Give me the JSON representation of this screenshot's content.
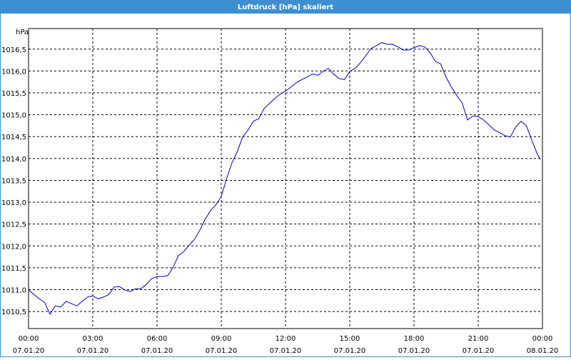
{
  "chart_data": {
    "type": "line",
    "title": "Luftdruck [hPa] skaliert",
    "y_label": "hPa",
    "x": [
      0,
      0.25,
      0.5,
      0.75,
      1,
      1.25,
      1.5,
      1.75,
      2,
      2.25,
      2.5,
      2.75,
      3,
      3.25,
      3.5,
      3.75,
      4,
      4.25,
      4.5,
      4.75,
      5,
      5.25,
      5.5,
      5.75,
      6,
      6.25,
      6.5,
      6.75,
      7,
      7.25,
      7.5,
      7.75,
      8,
      8.25,
      8.5,
      8.75,
      9,
      9.25,
      9.5,
      9.75,
      10,
      10.25,
      10.5,
      10.75,
      11,
      11.25,
      11.5,
      11.75,
      12,
      12.25,
      12.5,
      12.75,
      13,
      13.25,
      13.5,
      13.75,
      14,
      14.25,
      14.5,
      14.75,
      15,
      15.25,
      15.5,
      15.75,
      16,
      16.25,
      16.5,
      16.75,
      17,
      17.25,
      17.5,
      17.75,
      18,
      18.25,
      18.5,
      18.75,
      19,
      19.25,
      19.5,
      19.75,
      20,
      20.25,
      20.5,
      20.75,
      21,
      21.25,
      21.5,
      21.75,
      22,
      22.25,
      22.5,
      22.75,
      23,
      23.25,
      23.5,
      23.75,
      23.9
    ],
    "series": [
      {
        "name": "Luftdruck",
        "color": "#0000c0",
        "values": [
          1010.99,
          1010.89,
          1010.79,
          1010.71,
          1010.44,
          1010.63,
          1010.6,
          1010.73,
          1010.68,
          1010.63,
          1010.73,
          1010.83,
          1010.86,
          1010.79,
          1010.83,
          1010.89,
          1011.06,
          1011.07,
          1010.99,
          1010.96,
          1011.02,
          1011.02,
          1011.12,
          1011.25,
          1011.3,
          1011.3,
          1011.32,
          1011.51,
          1011.78,
          1011.87,
          1012.02,
          1012.15,
          1012.36,
          1012.61,
          1012.81,
          1012.94,
          1013.13,
          1013.54,
          1013.9,
          1014.16,
          1014.49,
          1014.65,
          1014.85,
          1014.91,
          1015.14,
          1015.26,
          1015.37,
          1015.47,
          1015.54,
          1015.63,
          1015.73,
          1015.8,
          1015.86,
          1015.93,
          1015.9,
          1015.99,
          1016.06,
          1015.93,
          1015.83,
          1015.8,
          1015.99,
          1016.06,
          1016.19,
          1016.35,
          1016.52,
          1016.58,
          1016.65,
          1016.61,
          1016.61,
          1016.55,
          1016.48,
          1016.48,
          1016.53,
          1016.58,
          1016.55,
          1016.42,
          1016.22,
          1016.16,
          1015.86,
          1015.63,
          1015.44,
          1015.27,
          1014.88,
          1014.97,
          1014.96,
          1014.88,
          1014.77,
          1014.65,
          1014.59,
          1014.52,
          1014.49,
          1014.72,
          1014.85,
          1014.75,
          1014.42,
          1014.11,
          1013.98
        ]
      }
    ],
    "xlim": [
      0,
      24
    ],
    "xticks": [
      {
        "value": 0,
        "label": "00:00",
        "sublabel": "07.01.20"
      },
      {
        "value": 3,
        "label": "03:00",
        "sublabel": "07.01.20"
      },
      {
        "value": 6,
        "label": "06:00",
        "sublabel": "07.01.20"
      },
      {
        "value": 9,
        "label": "09:00",
        "sublabel": "07.01.20"
      },
      {
        "value": 12,
        "label": "12:00",
        "sublabel": "07.01.20"
      },
      {
        "value": 15,
        "label": "15:00",
        "sublabel": "07.01.20"
      },
      {
        "value": 18,
        "label": "18:00",
        "sublabel": "07.01.20"
      },
      {
        "value": 21,
        "label": "21:00",
        "sublabel": "07.01.20"
      },
      {
        "value": 24,
        "label": "00:00",
        "sublabel": "08.01.20"
      }
    ],
    "ylim": [
      1010.11,
      1016.97
    ],
    "yticks": [
      {
        "value": 1010.5,
        "label": "1010,5"
      },
      {
        "value": 1011,
        "label": "1011,0"
      },
      {
        "value": 1011.5,
        "label": "1011,5"
      },
      {
        "value": 1012,
        "label": "1012,0"
      },
      {
        "value": 1012.5,
        "label": "1012,5"
      },
      {
        "value": 1013,
        "label": "1013,0"
      },
      {
        "value": 1013.5,
        "label": "1013,5"
      },
      {
        "value": 1014,
        "label": "1014,0"
      },
      {
        "value": 1014.5,
        "label": "1014,5"
      },
      {
        "value": 1015,
        "label": "1015,0"
      },
      {
        "value": 1015.5,
        "label": "1015,5"
      },
      {
        "value": 1016,
        "label": "1016,0"
      },
      {
        "value": 1016.5,
        "label": "1016,5"
      }
    ],
    "grid": true
  }
}
